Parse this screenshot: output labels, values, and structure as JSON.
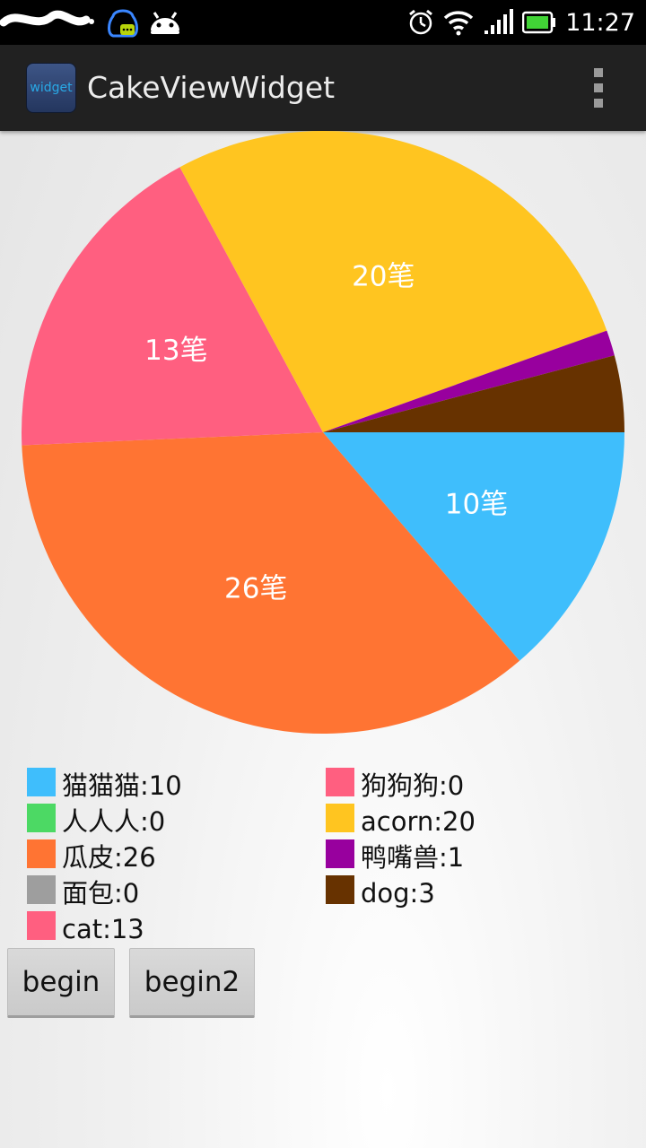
{
  "status_bar": {
    "time": "11:27",
    "icons": [
      "qq-icon",
      "android-icon",
      "alarm-icon",
      "wifi-icon",
      "signal-icon",
      "battery-icon"
    ]
  },
  "app_bar": {
    "icon_text": "widget",
    "title": "CakeViewWidget"
  },
  "chart_data": {
    "type": "pie",
    "unit_suffix": "笔",
    "slices": [
      {
        "name": "猫猫猫",
        "value": 10,
        "color": "#3fbefc"
      },
      {
        "name": "人人人",
        "value": 0,
        "color": "#4cd964"
      },
      {
        "name": "瓜皮",
        "value": 26,
        "color": "#ff7433"
      },
      {
        "name": "面包",
        "value": 0,
        "color": "#9e9e9e"
      },
      {
        "name": "cat",
        "value": 13,
        "color": "#ff5f80"
      },
      {
        "name": "狗狗狗",
        "value": 0,
        "color": "#ff5f80"
      },
      {
        "name": "acorn",
        "value": 20,
        "color": "#ffc520"
      },
      {
        "name": "鸭嘴兽",
        "value": 1,
        "color": "#98009e"
      },
      {
        "name": "dog",
        "value": 3,
        "color": "#673200"
      }
    ],
    "labels": [
      "10笔",
      "26笔",
      "13笔",
      "20笔"
    ]
  },
  "legend": {
    "left": [
      {
        "label": "猫猫猫:10",
        "color": "#3fbefc"
      },
      {
        "label": "人人人:0",
        "color": "#4cd964"
      },
      {
        "label": "瓜皮:26",
        "color": "#ff7433"
      },
      {
        "label": "面包:0",
        "color": "#9e9e9e"
      },
      {
        "label": "cat:13",
        "color": "#ff5f80"
      }
    ],
    "right": [
      {
        "label": "狗狗狗:0",
        "color": "#ff5f80"
      },
      {
        "label": "acorn:20",
        "color": "#ffc520"
      },
      {
        "label": "鸭嘴兽:1",
        "color": "#98009e"
      },
      {
        "label": "dog:3",
        "color": "#673200"
      }
    ]
  },
  "buttons": {
    "begin": "begin",
    "begin2": "begin2"
  }
}
